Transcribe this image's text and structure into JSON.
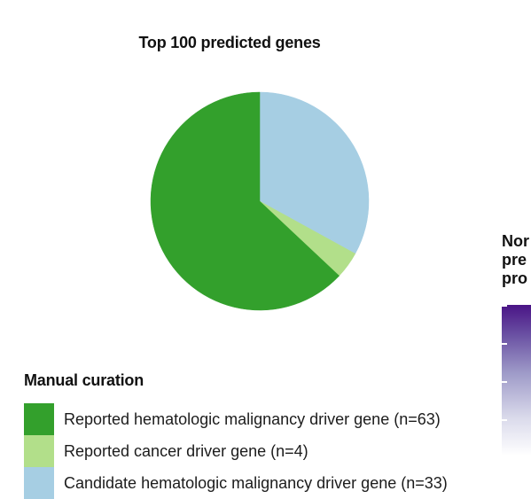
{
  "chart_data": {
    "type": "pie",
    "title": "Top 100 predicted genes",
    "legend_title": "Manual curation",
    "slices": [
      {
        "label": "Candidate hematologic malignancy driver gene (n=33)",
        "value": 33,
        "color": "#a6cee3"
      },
      {
        "label": "Reported cancer driver gene (n=4)",
        "value": 4,
        "color": "#b2df8a"
      },
      {
        "label": "Reported hematologic malignancy driver gene (n=63)",
        "value": 63,
        "color": "#33a02c"
      }
    ],
    "legend": [
      {
        "label": "Reported hematologic malignancy driver gene (n=63)",
        "color": "#33a02c"
      },
      {
        "label": "Reported cancer driver gene (n=4)",
        "color": "#b2df8a"
      },
      {
        "label": "Candidate hematologic malignancy driver gene (n=33)",
        "color": "#a6cee3"
      }
    ]
  },
  "side_panel": {
    "title_lines": [
      "Nor",
      "pre",
      "pro"
    ]
  }
}
